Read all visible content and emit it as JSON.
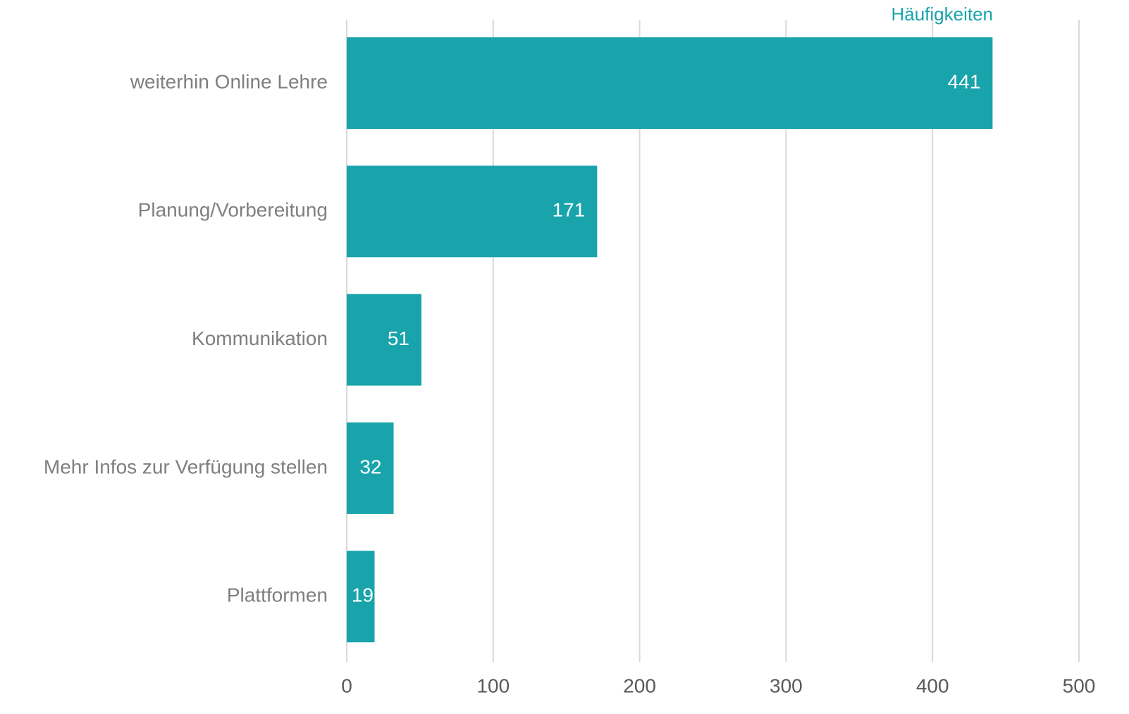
{
  "chart_data": {
    "type": "bar",
    "orientation": "horizontal",
    "categories": [
      "weiterhin Online Lehre",
      "Planung/Vorbereitung",
      "Kommunikation",
      "Mehr Infos zur Verfügung stellen",
      "Plattformen"
    ],
    "series": [
      {
        "name": "Häufigkeiten",
        "color": "#19a3ab",
        "values": [
          441,
          171,
          51,
          32,
          19
        ]
      }
    ],
    "xlim": [
      0,
      500
    ],
    "xticks": [
      0,
      100,
      200,
      300,
      400,
      500
    ],
    "grid": true
  }
}
